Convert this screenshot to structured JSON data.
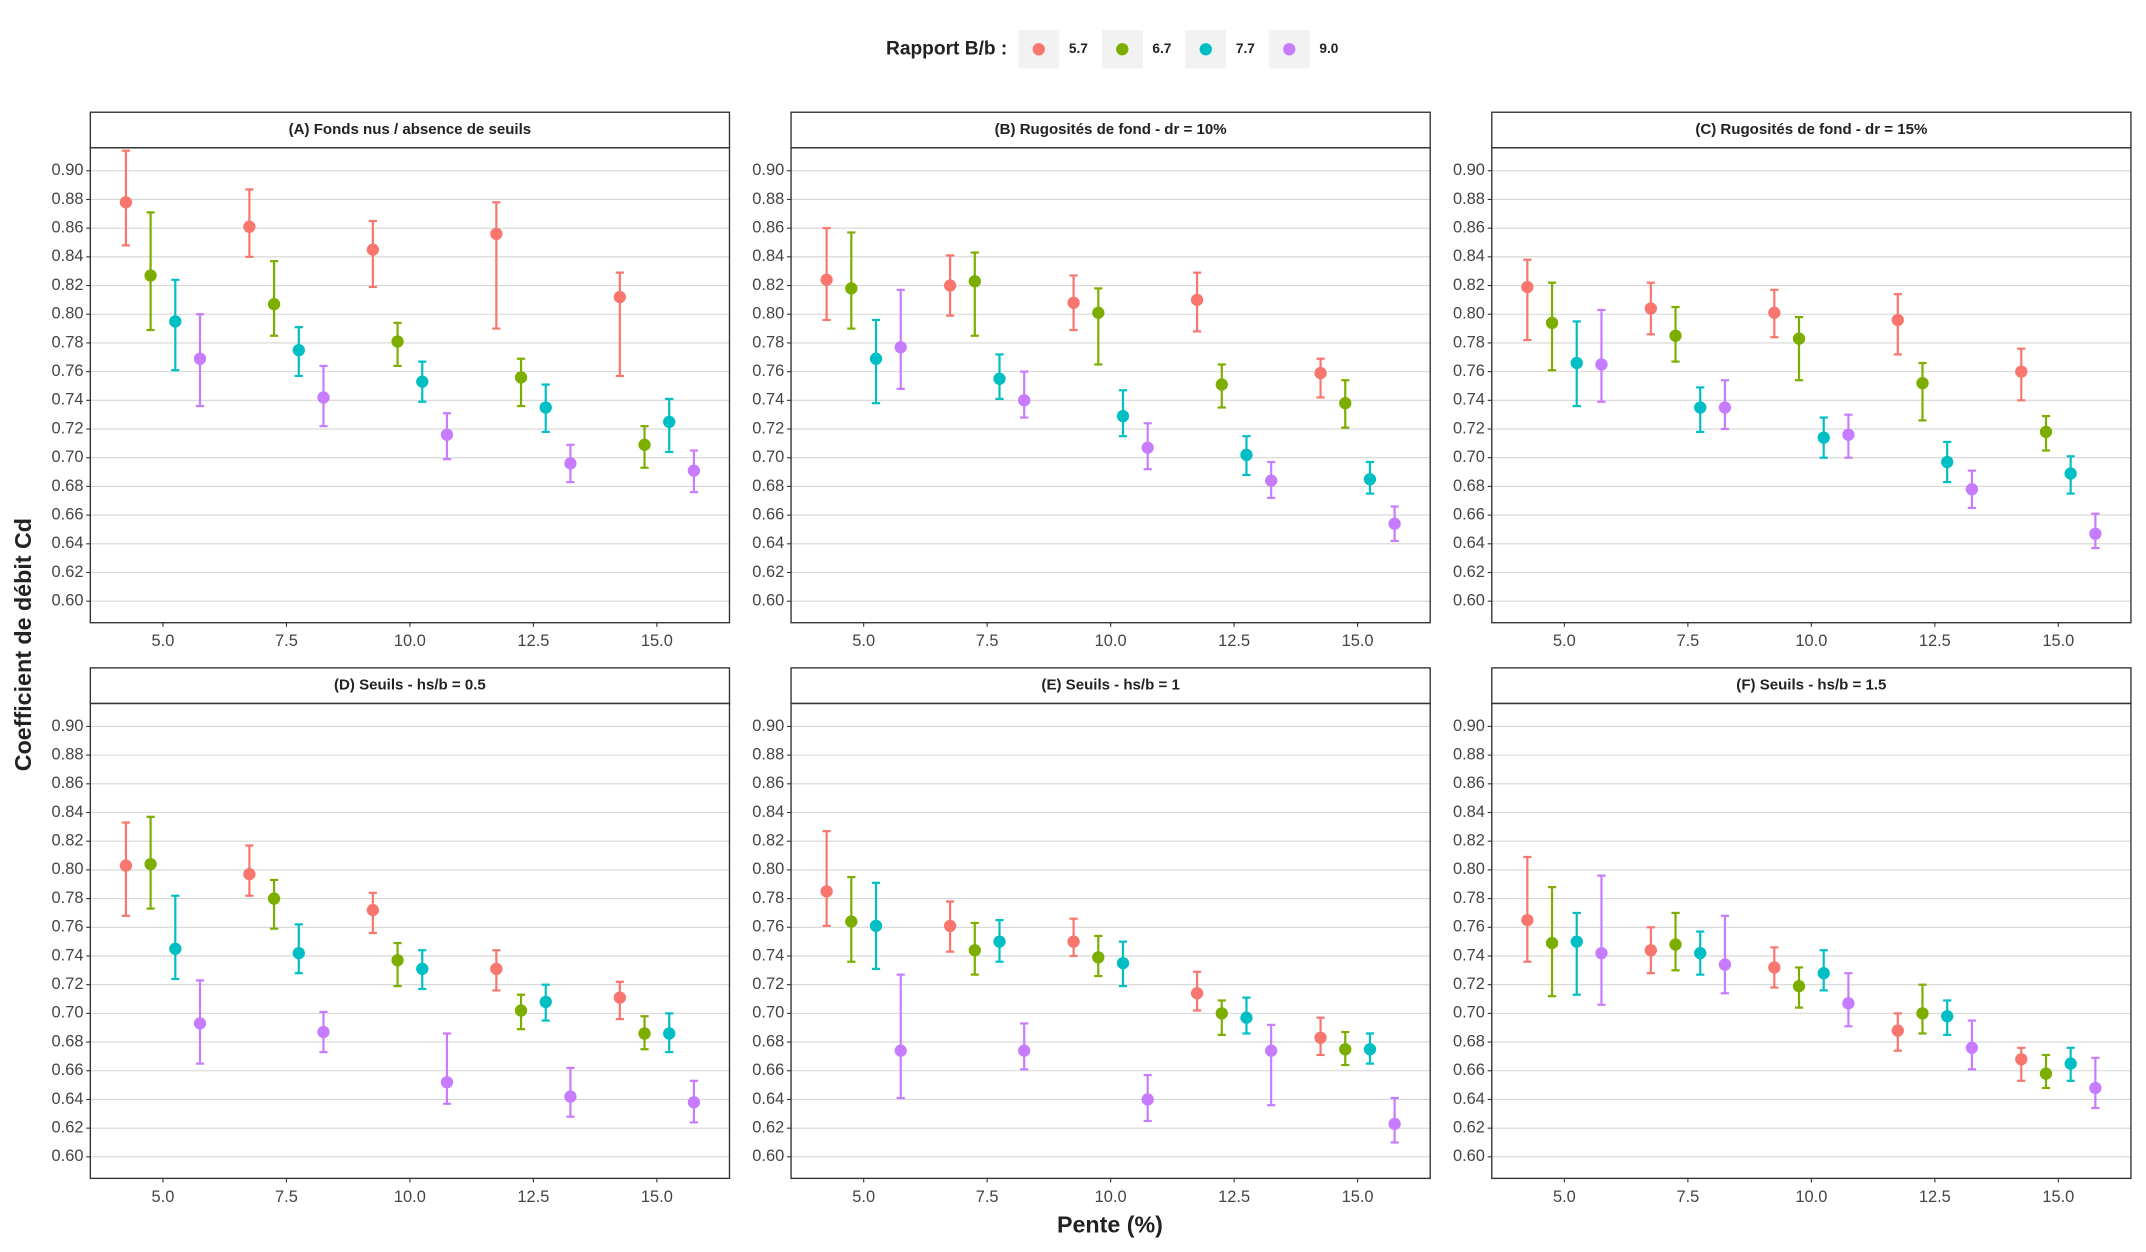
{
  "chart_data": {
    "type": "errorbar",
    "legend_title": "Rapport B/b :",
    "x_label": "Pente (%)",
    "y_label": "Coefficient de débit Cd",
    "series": [
      {
        "name": "5.7",
        "color": "#F8766D"
      },
      {
        "name": "6.7",
        "color": "#7CAE00"
      },
      {
        "name": "7.7",
        "color": "#00BFC4"
      },
      {
        "name": "9.0",
        "color": "#C77CFF"
      }
    ],
    "x": [
      5,
      7.5,
      10,
      12.5,
      15
    ],
    "xlim": [
      3.53,
      16.47
    ],
    "xticks": [
      {
        "value": 5,
        "label": "5.0"
      },
      7.5,
      {
        "value": 10,
        "label": "10.0"
      },
      12.5,
      {
        "value": 15,
        "label": "15.0"
      }
    ],
    "ylim": [
      0.585,
      0.916
    ],
    "yticks": [
      {
        "value": 0.6,
        "label": "0.60"
      },
      0.62,
      0.64,
      0.66,
      0.68,
      {
        "value": 0.7,
        "label": "0.70"
      },
      0.72,
      0.74,
      0.76,
      0.78,
      {
        "value": 0.8,
        "label": "0.80"
      },
      0.82,
      0.84,
      0.86,
      0.88,
      {
        "value": 0.9,
        "label": "0.90"
      }
    ],
    "grid": true,
    "panels": [
      {
        "title": "(A) Fonds nus / absence de seuils",
        "series": [
          {
            "values": [
              0.878,
              0.861,
              0.845,
              0.856,
              0.812
            ],
            "lower": [
              0.848,
              0.84,
              0.819,
              0.79,
              0.757
            ],
            "upper": [
              0.914,
              0.887,
              0.865,
              0.878,
              0.829
            ]
          },
          {
            "values": [
              0.827,
              0.807,
              0.781,
              0.756,
              0.709
            ],
            "lower": [
              0.789,
              0.785,
              0.764,
              0.736,
              0.693
            ],
            "upper": [
              0.871,
              0.837,
              0.794,
              0.769,
              0.722
            ]
          },
          {
            "values": [
              0.795,
              0.775,
              0.753,
              0.735,
              0.725
            ],
            "lower": [
              0.761,
              0.757,
              0.739,
              0.718,
              0.704
            ],
            "upper": [
              0.824,
              0.791,
              0.767,
              0.751,
              0.741
            ]
          },
          {
            "values": [
              0.769,
              0.742,
              0.716,
              0.696,
              0.691
            ],
            "lower": [
              0.736,
              0.722,
              0.699,
              0.683,
              0.676
            ],
            "upper": [
              0.8,
              0.764,
              0.731,
              0.709,
              0.705
            ]
          }
        ]
      },
      {
        "title": "(B) Rugosités de fond - dr = 10%",
        "series": [
          {
            "values": [
              0.824,
              0.82,
              0.808,
              0.81,
              0.759
            ],
            "lower": [
              0.796,
              0.799,
              0.789,
              0.788,
              0.742
            ],
            "upper": [
              0.86,
              0.841,
              0.827,
              0.829,
              0.769
            ]
          },
          {
            "values": [
              0.818,
              0.823,
              0.801,
              0.751,
              0.738
            ],
            "lower": [
              0.79,
              0.785,
              0.765,
              0.735,
              0.721
            ],
            "upper": [
              0.857,
              0.843,
              0.818,
              0.765,
              0.754
            ]
          },
          {
            "values": [
              0.769,
              0.755,
              0.729,
              0.702,
              0.685
            ],
            "lower": [
              0.738,
              0.741,
              0.715,
              0.688,
              0.675
            ],
            "upper": [
              0.796,
              0.772,
              0.747,
              0.715,
              0.697
            ]
          },
          {
            "values": [
              0.777,
              0.74,
              0.707,
              0.684,
              0.654
            ],
            "lower": [
              0.748,
              0.728,
              0.692,
              0.672,
              0.642
            ],
            "upper": [
              0.817,
              0.76,
              0.724,
              0.697,
              0.666
            ]
          }
        ]
      },
      {
        "title": "(C) Rugosités de fond - dr = 15%",
        "series": [
          {
            "values": [
              0.819,
              0.804,
              0.801,
              0.796,
              0.76
            ],
            "lower": [
              0.782,
              0.786,
              0.784,
              0.772,
              0.74
            ],
            "upper": [
              0.838,
              0.822,
              0.817,
              0.814,
              0.776
            ]
          },
          {
            "values": [
              0.794,
              0.785,
              0.783,
              0.752,
              0.718
            ],
            "lower": [
              0.761,
              0.767,
              0.754,
              0.726,
              0.705
            ],
            "upper": [
              0.822,
              0.805,
              0.798,
              0.766,
              0.729
            ]
          },
          {
            "values": [
              0.766,
              0.735,
              0.714,
              0.697,
              0.689
            ],
            "lower": [
              0.736,
              0.718,
              0.7,
              0.683,
              0.675
            ],
            "upper": [
              0.795,
              0.749,
              0.728,
              0.711,
              0.701
            ]
          },
          {
            "values": [
              0.765,
              0.735,
              0.716,
              0.678,
              0.647
            ],
            "lower": [
              0.739,
              0.72,
              0.7,
              0.665,
              0.637
            ],
            "upper": [
              0.803,
              0.754,
              0.73,
              0.691,
              0.661
            ]
          }
        ]
      },
      {
        "title": "(D) Seuils - hs/b = 0.5",
        "series": [
          {
            "values": [
              0.803,
              0.797,
              0.772,
              0.731,
              0.711
            ],
            "lower": [
              0.768,
              0.782,
              0.756,
              0.716,
              0.696
            ],
            "upper": [
              0.833,
              0.817,
              0.784,
              0.744,
              0.722
            ]
          },
          {
            "values": [
              0.804,
              0.78,
              0.737,
              0.702,
              0.686
            ],
            "lower": [
              0.773,
              0.759,
              0.719,
              0.689,
              0.675
            ],
            "upper": [
              0.837,
              0.793,
              0.749,
              0.713,
              0.698
            ]
          },
          {
            "values": [
              0.745,
              0.742,
              0.731,
              0.708,
              0.686
            ],
            "lower": [
              0.724,
              0.728,
              0.717,
              0.695,
              0.673
            ],
            "upper": [
              0.782,
              0.762,
              0.744,
              0.72,
              0.7
            ]
          },
          {
            "values": [
              0.693,
              0.687,
              0.652,
              0.642,
              0.638
            ],
            "lower": [
              0.665,
              0.673,
              0.637,
              0.628,
              0.624
            ],
            "upper": [
              0.723,
              0.701,
              0.686,
              0.662,
              0.653
            ]
          }
        ]
      },
      {
        "title": "(E) Seuils - hs/b = 1",
        "series": [
          {
            "values": [
              0.785,
              0.761,
              0.75,
              0.714,
              0.683
            ],
            "lower": [
              0.761,
              0.743,
              0.74,
              0.702,
              0.671
            ],
            "upper": [
              0.827,
              0.778,
              0.766,
              0.729,
              0.697
            ]
          },
          {
            "values": [
              0.764,
              0.744,
              0.739,
              0.7,
              0.675
            ],
            "lower": [
              0.736,
              0.727,
              0.726,
              0.685,
              0.664
            ],
            "upper": [
              0.795,
              0.763,
              0.754,
              0.709,
              0.687
            ]
          },
          {
            "values": [
              0.761,
              0.75,
              0.735,
              0.697,
              0.675
            ],
            "lower": [
              0.731,
              0.736,
              0.719,
              0.686,
              0.665
            ],
            "upper": [
              0.791,
              0.765,
              0.75,
              0.711,
              0.686
            ]
          },
          {
            "values": [
              0.674,
              0.674,
              0.64,
              0.674,
              0.623
            ],
            "lower": [
              0.641,
              0.661,
              0.625,
              0.636,
              0.61
            ],
            "upper": [
              0.727,
              0.693,
              0.657,
              0.692,
              0.641
            ]
          }
        ]
      },
      {
        "title": "(F) Seuils - hs/b = 1.5",
        "series": [
          {
            "values": [
              0.765,
              0.744,
              0.732,
              0.688,
              0.668
            ],
            "lower": [
              0.736,
              0.728,
              0.718,
              0.674,
              0.653
            ],
            "upper": [
              0.809,
              0.76,
              0.746,
              0.7,
              0.676
            ]
          },
          {
            "values": [
              0.749,
              0.748,
              0.719,
              0.7,
              0.658
            ],
            "lower": [
              0.712,
              0.73,
              0.704,
              0.686,
              0.648
            ],
            "upper": [
              0.788,
              0.77,
              0.732,
              0.72,
              0.671
            ]
          },
          {
            "values": [
              0.75,
              0.742,
              0.728,
              0.698,
              0.665
            ],
            "lower": [
              0.713,
              0.727,
              0.716,
              0.685,
              0.653
            ],
            "upper": [
              0.77,
              0.757,
              0.744,
              0.709,
              0.676
            ]
          },
          {
            "values": [
              0.742,
              0.734,
              0.707,
              0.676,
              0.648
            ],
            "lower": [
              0.706,
              0.714,
              0.691,
              0.661,
              0.634
            ],
            "upper": [
              0.796,
              0.768,
              0.728,
              0.695,
              0.669
            ]
          }
        ]
      }
    ]
  }
}
